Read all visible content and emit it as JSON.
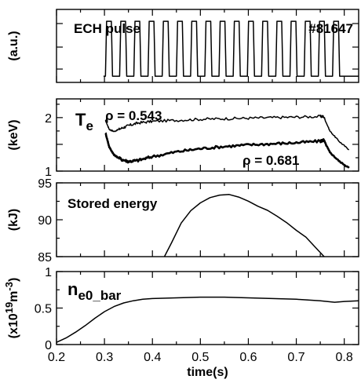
{
  "chart_data": {
    "type": "line",
    "x_axis": {
      "label": "time(s)",
      "range": [
        0.2,
        0.83
      ],
      "ticks": [
        0.2,
        0.3,
        0.4,
        0.5,
        0.6,
        0.7,
        0.8
      ],
      "tick_labels": [
        "0.2",
        "0.3",
        "0.4",
        "0.5",
        "0.6",
        "0.7",
        "0.8"
      ]
    },
    "panels": [
      {
        "id": "ech",
        "ylabel": "(a.u.)",
        "ylim": [
          0,
          1
        ],
        "tick_labels": [],
        "annotations": {
          "title": "ECH pulse",
          "shot": "#81647"
        },
        "series": [
          {
            "kind": "pulse_train",
            "t_start": 0.302,
            "period": 0.0296,
            "duty": 0.5,
            "count": 17,
            "low": 0.02,
            "high": 0.88
          }
        ]
      },
      {
        "id": "te",
        "ylabel": "(keV)",
        "ylim": [
          1,
          2.35
        ],
        "ticks": [
          1,
          1.5,
          2
        ],
        "tick_labels": [
          "1",
          "",
          "2"
        ],
        "annotations": {
          "symbol": "T",
          "subscript": "e",
          "label_upper": "ρ = 0.543",
          "label_lower": "ρ = 0.681"
        },
        "series": [
          {
            "name": "ρ = 0.543",
            "x": [
              0.302,
              0.31,
              0.32,
              0.335,
              0.35,
              0.37,
              0.4,
              0.45,
              0.5,
              0.55,
              0.6,
              0.65,
              0.7,
              0.75,
              0.757,
              0.77,
              0.79,
              0.81
            ],
            "y": [
              1.95,
              1.78,
              1.74,
              1.8,
              1.85,
              1.9,
              1.93,
              1.95,
              1.97,
              1.98,
              1.99,
              2.0,
              2.01,
              2.02,
              2.02,
              1.75,
              1.55,
              1.4
            ]
          },
          {
            "name": "ρ = 0.681",
            "x": [
              0.302,
              0.31,
              0.32,
              0.335,
              0.35,
              0.37,
              0.4,
              0.45,
              0.5,
              0.55,
              0.6,
              0.65,
              0.7,
              0.75,
              0.757,
              0.77,
              0.79,
              0.81
            ],
            "y": [
              1.72,
              1.45,
              1.3,
              1.22,
              1.18,
              1.2,
              1.27,
              1.36,
              1.42,
              1.46,
              1.49,
              1.51,
              1.53,
              1.56,
              1.58,
              1.35,
              1.18,
              1.06
            ]
          }
        ]
      },
      {
        "id": "wp",
        "ylabel": "(kJ)",
        "ylim": [
          85,
          95
        ],
        "ticks": [
          85,
          90,
          95
        ],
        "tick_labels": [
          "85",
          "90",
          "95"
        ],
        "annotations": {
          "title": "Stored energy"
        },
        "series": [
          {
            "name": "Stored energy",
            "x": [
              0.425,
              0.44,
              0.46,
              0.48,
              0.5,
              0.52,
              0.54,
              0.56,
              0.58,
              0.6,
              0.62,
              0.64,
              0.66,
              0.68,
              0.7,
              0.72,
              0.74,
              0.758
            ],
            "y": [
              85.0,
              87.0,
              89.5,
              91.2,
              92.3,
              92.9,
              93.3,
              93.3,
              93.0,
              92.5,
              91.9,
              91.2,
              90.4,
              89.6,
              88.6,
              87.6,
              86.3,
              85.0
            ]
          }
        ]
      },
      {
        "id": "ne",
        "ylabel": "(x10¹⁹m⁻³)",
        "ylim": [
          0,
          1
        ],
        "ticks": [
          0,
          0.5,
          1
        ],
        "tick_labels": [
          "0",
          "0.5",
          "1"
        ],
        "annotations": {
          "symbol": "n",
          "subscript": "e0_bar"
        },
        "series": [
          {
            "name": "n_e0_bar",
            "x": [
              0.2,
              0.22,
              0.24,
              0.26,
              0.28,
              0.3,
              0.32,
              0.34,
              0.36,
              0.38,
              0.4,
              0.45,
              0.5,
              0.55,
              0.6,
              0.65,
              0.7,
              0.75,
              0.78,
              0.8,
              0.83
            ],
            "y": [
              0.03,
              0.09,
              0.17,
              0.26,
              0.36,
              0.45,
              0.52,
              0.57,
              0.6,
              0.62,
              0.63,
              0.64,
              0.65,
              0.65,
              0.64,
              0.63,
              0.62,
              0.6,
              0.58,
              0.59,
              0.6
            ]
          }
        ]
      }
    ]
  }
}
